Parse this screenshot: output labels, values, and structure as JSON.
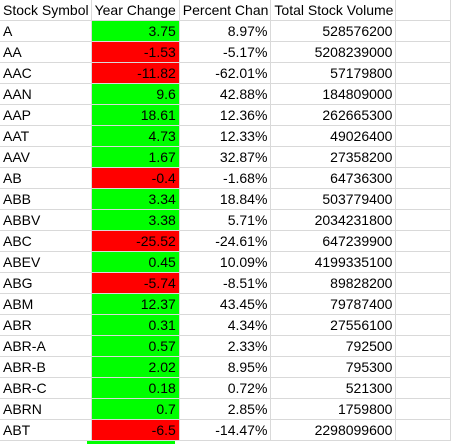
{
  "headers": [
    "Stock Symbol",
    "Year Change",
    "Percent Chan",
    "Total Stock Volume"
  ],
  "rows": [
    {
      "symbol": "A",
      "change": "3.75",
      "percent": "8.97%",
      "volume": "528576200",
      "status": "positive"
    },
    {
      "symbol": "AA",
      "change": "-1.53",
      "percent": "-5.17%",
      "volume": "5208239000",
      "status": "negative"
    },
    {
      "symbol": "AAC",
      "change": "-11.82",
      "percent": "-62.01%",
      "volume": "57179800",
      "status": "negative"
    },
    {
      "symbol": "AAN",
      "change": "9.6",
      "percent": "42.88%",
      "volume": "184809000",
      "status": "positive"
    },
    {
      "symbol": "AAP",
      "change": "18.61",
      "percent": "12.36%",
      "volume": "262665300",
      "status": "positive"
    },
    {
      "symbol": "AAT",
      "change": "4.73",
      "percent": "12.33%",
      "volume": "49026400",
      "status": "positive"
    },
    {
      "symbol": "AAV",
      "change": "1.67",
      "percent": "32.87%",
      "volume": "27358200",
      "status": "positive"
    },
    {
      "symbol": "AB",
      "change": "-0.4",
      "percent": "-1.68%",
      "volume": "64736300",
      "status": "negative"
    },
    {
      "symbol": "ABB",
      "change": "3.34",
      "percent": "18.84%",
      "volume": "503779400",
      "status": "positive"
    },
    {
      "symbol": "ABBV",
      "change": "3.38",
      "percent": "5.71%",
      "volume": "2034231800",
      "status": "positive"
    },
    {
      "symbol": "ABC",
      "change": "-25.52",
      "percent": "-24.61%",
      "volume": "647239900",
      "status": "negative"
    },
    {
      "symbol": "ABEV",
      "change": "0.45",
      "percent": "10.09%",
      "volume": "4199335100",
      "status": "positive"
    },
    {
      "symbol": "ABG",
      "change": "-5.74",
      "percent": "-8.51%",
      "volume": "89828200",
      "status": "negative"
    },
    {
      "symbol": "ABM",
      "change": "12.37",
      "percent": "43.45%",
      "volume": "79787400",
      "status": "positive"
    },
    {
      "symbol": "ABR",
      "change": "0.31",
      "percent": "4.34%",
      "volume": "27556100",
      "status": "positive"
    },
    {
      "symbol": "ABR-A",
      "change": "0.57",
      "percent": "2.33%",
      "volume": "792500",
      "status": "positive"
    },
    {
      "symbol": "ABR-B",
      "change": "2.02",
      "percent": "8.95%",
      "volume": "795300",
      "status": "positive"
    },
    {
      "symbol": "ABR-C",
      "change": "0.18",
      "percent": "0.72%",
      "volume": "521300",
      "status": "positive"
    },
    {
      "symbol": "ABRN",
      "change": "0.7",
      "percent": "2.85%",
      "volume": "1759800",
      "status": "positive"
    },
    {
      "symbol": "ABT",
      "change": "-6.5",
      "percent": "-14.47%",
      "volume": "2298099600",
      "status": "negative"
    }
  ],
  "colors": {
    "positive": "#00ff00",
    "negative": "#ff0000",
    "gridline": "#d9d9d9"
  }
}
